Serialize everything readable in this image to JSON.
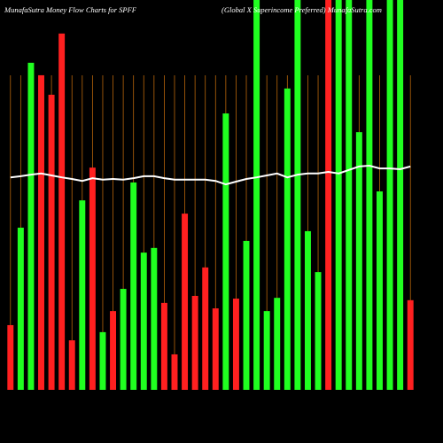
{
  "chart_data": {
    "type": "bar",
    "title": "MunafaSutra  Money Flow  Charts for SPFF",
    "subtitle": "(Global X Superincome Preferred) MunafaSutra.com",
    "categories": [
      null,
      null,
      null,
      null,
      null,
      null,
      null,
      null,
      null,
      null,
      null,
      null,
      null,
      null,
      null,
      null,
      null,
      null,
      null,
      null,
      null,
      null,
      null,
      null,
      null,
      null,
      null,
      null,
      null,
      null,
      null,
      null,
      null,
      null,
      null,
      null,
      null,
      null,
      null,
      null
    ],
    "values": [
      16.6,
      41.6,
      83.9,
      80.7,
      75.7,
      91.4,
      12.7,
      48.6,
      57,
      14.8,
      20.2,
      25.9,
      53.2,
      35.2,
      36.4,
      22.3,
      9.1,
      45.2,
      24.1,
      31.4,
      20.9,
      70.9,
      23.4,
      38.2,
      100,
      20.2,
      23.6,
      77.3,
      100,
      40.7,
      30.2,
      100,
      100,
      100,
      66.1,
      100,
      50.9,
      100,
      100,
      23
    ],
    "colors": [
      "#ff2020",
      "#20ff20",
      "#20ff20",
      "#ff2020",
      "#ff2020",
      "#ff2020",
      "#ff2020",
      "#20ff20",
      "#ff2020",
      "#20ff20",
      "#ff2020",
      "#20ff20",
      "#20ff20",
      "#20ff20",
      "#20ff20",
      "#ff2020",
      "#ff2020",
      "#ff2020",
      "#ff2020",
      "#ff2020",
      "#ff2020",
      "#20ff20",
      "#ff2020",
      "#20ff20",
      "#20ff20",
      "#20ff20",
      "#20ff20",
      "#20ff20",
      "#20ff20",
      "#20ff20",
      "#20ff20",
      "#ff2020",
      "#20ff20",
      "#20ff20",
      "#20ff20",
      "#20ff20",
      "#20ff20",
      "#20ff20",
      "#20ff20",
      "#ff2020"
    ],
    "line_values": [
      54.5,
      54.8,
      55.2,
      55.5,
      55,
      54.5,
      54.1,
      53.6,
      54.3,
      53.9,
      54.1,
      53.9,
      54.3,
      54.8,
      54.8,
      54.3,
      53.9,
      53.9,
      53.9,
      53.9,
      53.6,
      52.7,
      53.4,
      54.1,
      54.5,
      55,
      55.5,
      54.5,
      55.2,
      55.5,
      55.5,
      55.9,
      55.5,
      56.4,
      57.3,
      57.5,
      56.8,
      56.8,
      56.6,
      57.3
    ],
    "line_color": "#ffffff",
    "grid_color": "#b8650a",
    "ylim": [
      0,
      100
    ]
  }
}
